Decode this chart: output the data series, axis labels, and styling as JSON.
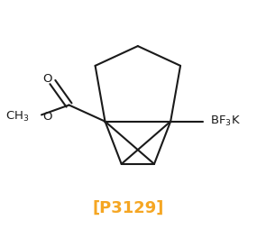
{
  "title": "[P3129]",
  "title_color": "#F5A623",
  "title_fontsize": 13,
  "bg_color": "#ffffff",
  "bond_color": "#1a1a1a",
  "bond_lw": 1.5,
  "text_color": "#1a1a1a",
  "label_fontsize": 9.5
}
